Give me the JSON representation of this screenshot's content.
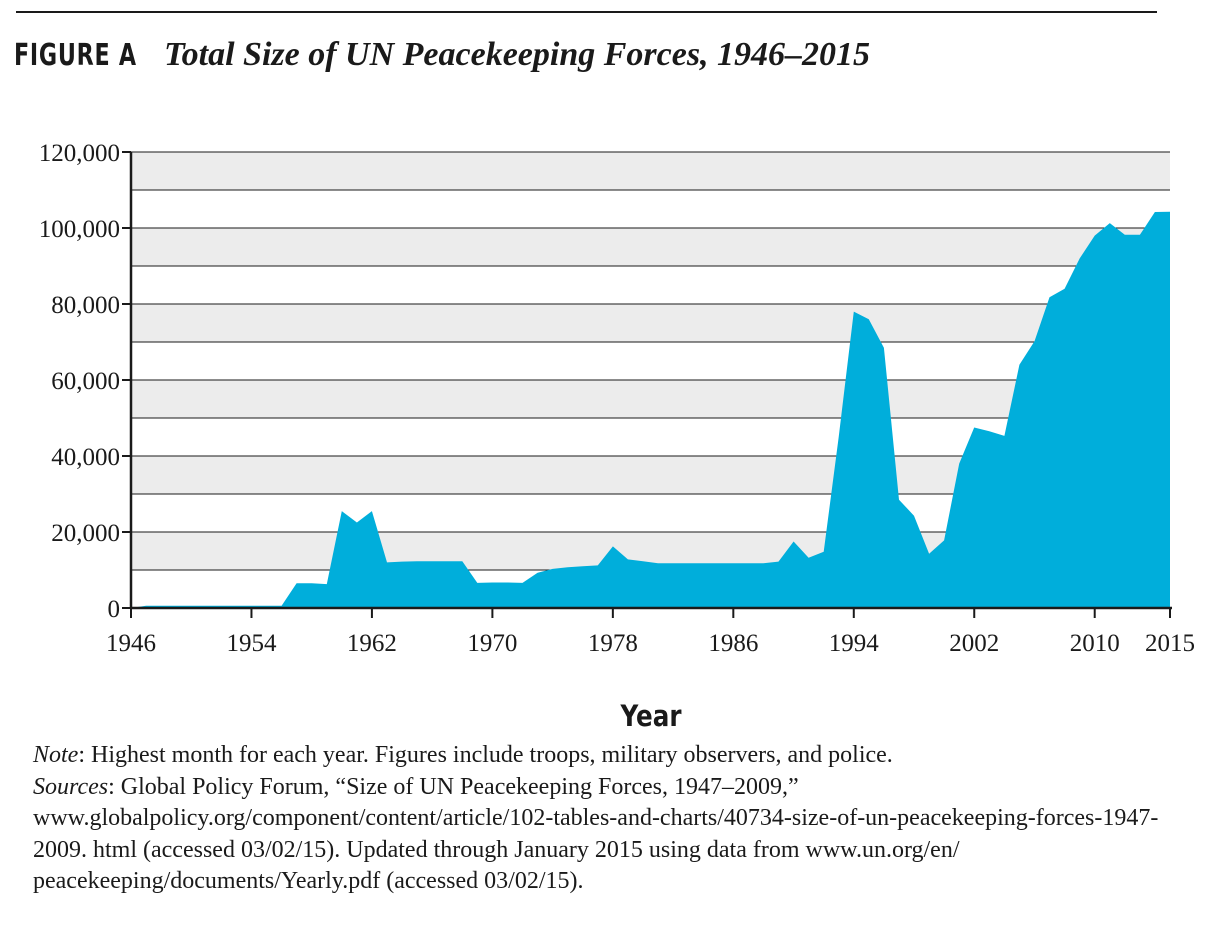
{
  "figure": {
    "label": "FIGURE A",
    "title": "Total Size of UN Peacekeeping Forces, 1946–2015"
  },
  "chart_data": {
    "type": "area",
    "title": "Total Size of UN Peacekeeping Forces, 1946–2015",
    "xlabel": "Year",
    "ylabel": "",
    "xlim": [
      1946,
      2015
    ],
    "ylim": [
      0,
      120000
    ],
    "x_ticks": [
      1946,
      1954,
      1962,
      1970,
      1978,
      1986,
      1994,
      2002,
      2010,
      2015
    ],
    "x_tick_labels": [
      "1946",
      "1954",
      "1962",
      "1970",
      "1978",
      "1986",
      "1994",
      "2002",
      "2010",
      "2015"
    ],
    "y_ticks": [
      0,
      20000,
      40000,
      60000,
      80000,
      100000,
      120000
    ],
    "y_tick_labels": [
      "0",
      "20,000",
      "40,000",
      "60,000",
      "80,000",
      "100,000",
      "120,000"
    ],
    "gridlines": [
      0,
      10000,
      20000,
      30000,
      40000,
      50000,
      60000,
      70000,
      80000,
      90000,
      100000,
      110000,
      120000
    ],
    "grid": true,
    "legend": "none",
    "colors": {
      "area": "#00aedb",
      "band": "#ececec",
      "axis": "#1a1a1a"
    },
    "x": [
      1946,
      1947,
      1948,
      1949,
      1950,
      1951,
      1952,
      1953,
      1954,
      1955,
      1956,
      1957,
      1958,
      1959,
      1960,
      1961,
      1962,
      1963,
      1964,
      1965,
      1966,
      1967,
      1968,
      1969,
      1970,
      1971,
      1972,
      1973,
      1974,
      1975,
      1976,
      1977,
      1978,
      1979,
      1980,
      1981,
      1982,
      1983,
      1984,
      1985,
      1986,
      1987,
      1988,
      1989,
      1990,
      1991,
      1992,
      1993,
      1994,
      1995,
      1996,
      1997,
      1998,
      1999,
      2000,
      2001,
      2002,
      2003,
      2004,
      2005,
      2006,
      2007,
      2008,
      2009,
      2010,
      2011,
      2012,
      2013,
      2014,
      2015
    ],
    "y": [
      0,
      600,
      600,
      600,
      600,
      600,
      600,
      600,
      600,
      600,
      600,
      6500,
      6500,
      6300,
      25500,
      22500,
      25500,
      12000,
      12200,
      12300,
      12300,
      12300,
      12300,
      6600,
      6700,
      6700,
      6600,
      9300,
      10300,
      10700,
      11000,
      11200,
      16200,
      12800,
      12300,
      11800,
      11800,
      11800,
      11800,
      11800,
      11800,
      11800,
      11800,
      12200,
      17500,
      13200,
      14800,
      45000,
      78000,
      76000,
      68500,
      28500,
      24300,
      14300,
      17800,
      38000,
      47500,
      46500,
      45300,
      64000,
      70200,
      81800,
      84000,
      92000,
      98000,
      101300,
      98200,
      98200,
      104200,
      104300
    ]
  },
  "notes": {
    "note_label": "Note",
    "note_text": ": Highest month for each year. Figures include troops, military observers, and police.",
    "sources_label": "Sources",
    "sources_text": ": Global Policy Forum, “Size of UN Peacekeeping Forces, 1947–2009,” www.globalpolicy.org/component/content/article/102-tables-and-charts/40734-size-of-un-peacekeeping-forces-1947-2009. html (accessed 03/02/15). Updated through January 2015 using data from www.un.org/en/ peacekeeping/documents/Yearly.pdf (accessed 03/02/15)."
  }
}
